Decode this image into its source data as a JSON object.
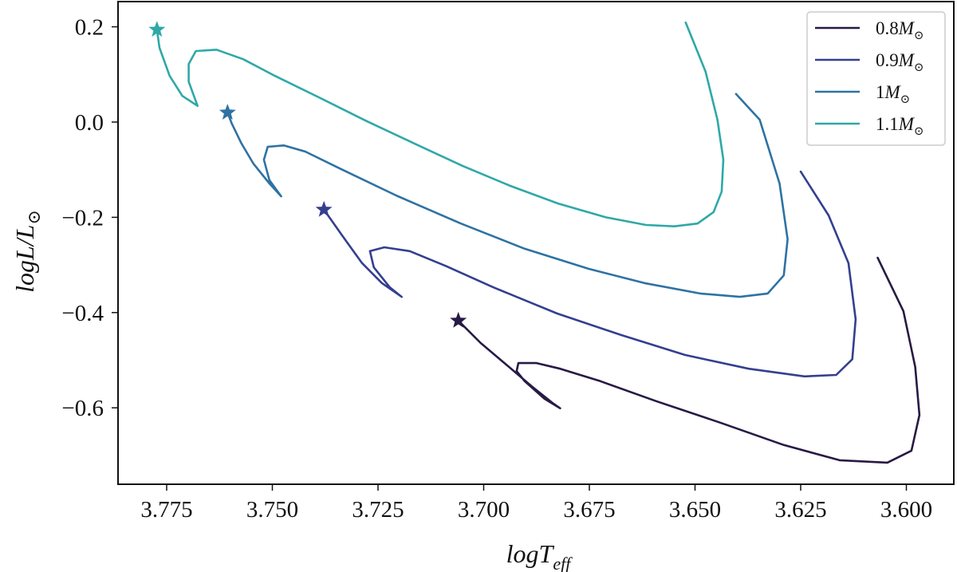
{
  "chart_data": {
    "type": "line",
    "title": "",
    "xlabel": "logT_eff",
    "ylabel": "logL/L_sun",
    "xlabel_parts": {
      "main": "logT",
      "sub": "eff"
    },
    "ylabel_parts": {
      "main": "logL/L",
      "sub": "⊙"
    },
    "xlim": [
      3.7865,
      3.5855
    ],
    "ylim": [
      -0.765,
      0.253
    ],
    "x_inverted": true,
    "grid": false,
    "legend_position": "upper right",
    "x_ticks": [
      3.775,
      3.75,
      3.725,
      3.7,
      3.675,
      3.65,
      3.625,
      3.6
    ],
    "x_tick_labels": [
      "3.775",
      "3.750",
      "3.725",
      "3.700",
      "3.675",
      "3.650",
      "3.625",
      "3.600"
    ],
    "y_ticks": [
      0.2,
      0.0,
      -0.2,
      -0.4,
      -0.6
    ],
    "y_tick_labels": [
      "0.2",
      "0.0",
      "−0.2",
      "−0.4",
      "−0.6"
    ],
    "series": [
      {
        "name": "0.8M☉",
        "label_num": "0.8",
        "color": "#271a45",
        "marker_start": "star",
        "logT": [
          3.706,
          3.7007,
          3.6951,
          3.6885,
          3.6837,
          3.6819,
          3.6856,
          3.6903,
          3.6922,
          3.6918,
          3.6875,
          3.6819,
          3.6724,
          3.6592,
          3.6441,
          3.629,
          3.6158,
          3.6045,
          3.5988,
          3.5969,
          3.5979,
          3.6007,
          3.6068
        ],
        "logL": [
          -0.417,
          -0.464,
          -0.506,
          -0.556,
          -0.59,
          -0.601,
          -0.581,
          -0.544,
          -0.523,
          -0.506,
          -0.506,
          -0.518,
          -0.544,
          -0.586,
          -0.631,
          -0.678,
          -0.71,
          -0.715,
          -0.69,
          -0.615,
          -0.514,
          -0.397,
          -0.285
        ]
      },
      {
        "name": "0.9M☉",
        "label_num": "0.9",
        "color": "#343f8f",
        "marker_start": "star",
        "logT": [
          3.7378,
          3.7335,
          3.7288,
          3.7241,
          3.7194,
          3.7222,
          3.726,
          3.7269,
          3.7235,
          3.7175,
          3.709,
          3.6977,
          3.6826,
          3.6675,
          3.6524,
          3.6373,
          3.6241,
          3.6166,
          3.6128,
          3.612,
          3.6137,
          3.6184,
          3.625
        ],
        "logL": [
          -0.184,
          -0.238,
          -0.296,
          -0.338,
          -0.367,
          -0.347,
          -0.305,
          -0.271,
          -0.263,
          -0.271,
          -0.302,
          -0.347,
          -0.402,
          -0.447,
          -0.489,
          -0.518,
          -0.534,
          -0.531,
          -0.498,
          -0.414,
          -0.296,
          -0.196,
          -0.104
        ]
      },
      {
        "name": "1M☉",
        "label_num": "1",
        "color": "#2e72a3",
        "marker_start": "star",
        "logT": [
          3.7606,
          3.7596,
          3.7573,
          3.7545,
          3.7507,
          3.7479,
          3.7507,
          3.752,
          3.7511,
          3.7473,
          3.7422,
          3.7337,
          3.7205,
          3.7054,
          3.6903,
          3.6752,
          3.662,
          3.6488,
          3.6394,
          3.6328,
          3.629,
          3.6281,
          3.63,
          3.6347,
          3.6403
        ],
        "logL": [
          0.02,
          -0.003,
          -0.045,
          -0.087,
          -0.129,
          -0.156,
          -0.122,
          -0.079,
          -0.052,
          -0.049,
          -0.062,
          -0.099,
          -0.155,
          -0.213,
          -0.266,
          -0.308,
          -0.338,
          -0.36,
          -0.367,
          -0.36,
          -0.322,
          -0.246,
          -0.129,
          0.005,
          0.059
        ]
      },
      {
        "name": "1.1M☉",
        "label_num": "1.1",
        "color": "#2fa8a8",
        "marker_start": "star",
        "logT": [
          3.7773,
          3.7767,
          3.7743,
          3.7713,
          3.7677,
          3.7698,
          3.7698,
          3.7681,
          3.7632,
          3.7569,
          3.7494,
          3.739,
          3.7277,
          3.7164,
          3.705,
          3.6937,
          3.6824,
          3.6711,
          3.6616,
          3.6549,
          3.6494,
          3.6456,
          3.6437,
          3.6433,
          3.6447,
          3.6475,
          3.6522
        ],
        "logL": [
          0.194,
          0.156,
          0.097,
          0.055,
          0.034,
          0.085,
          0.122,
          0.149,
          0.152,
          0.132,
          0.097,
          0.052,
          0.002,
          -0.045,
          -0.092,
          -0.134,
          -0.171,
          -0.2,
          -0.216,
          -0.219,
          -0.213,
          -0.189,
          -0.146,
          -0.079,
          0.005,
          0.106,
          0.209
        ]
      }
    ]
  },
  "legend": {
    "items": [
      {
        "num": "0.8",
        "sym": "M",
        "sub": "⊙"
      },
      {
        "num": "0.9",
        "sym": "M",
        "sub": "⊙"
      },
      {
        "num": "1",
        "sym": "M",
        "sub": "⊙"
      },
      {
        "num": "1.1",
        "sym": "M",
        "sub": "⊙"
      }
    ]
  },
  "axes": {
    "xlabel_main": "logT",
    "xlabel_sub": "eff",
    "ylabel_main": "logL/L",
    "ylabel_sub": "⊙"
  }
}
